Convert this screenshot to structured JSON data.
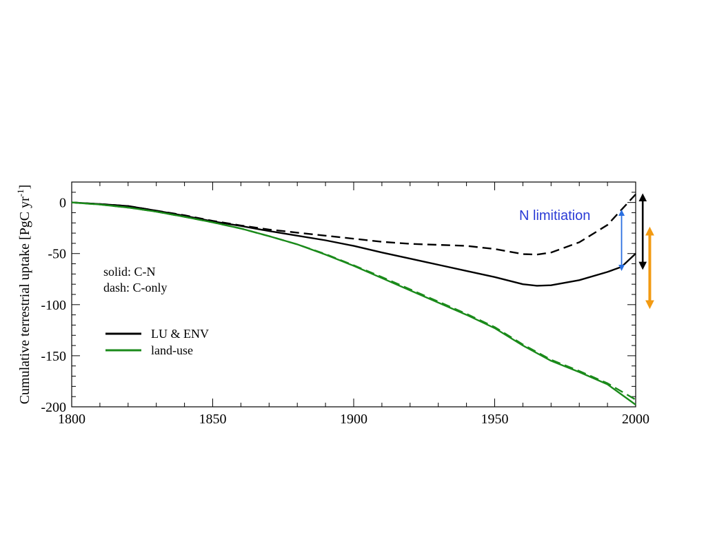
{
  "chart_data": {
    "type": "line",
    "title": "",
    "xlabel": "",
    "ylabel": "Cumulative terrestrial uptake [PgC yr",
    "ylabel_sup": "-1",
    "ylabel_close": "]",
    "xlim": [
      1800,
      2000
    ],
    "ylim": [
      -200,
      20
    ],
    "xticks": [
      1800,
      1850,
      1900,
      1950,
      2000
    ],
    "yticks": [
      0,
      -50,
      -100,
      -150,
      -200
    ],
    "xminor_step": 10,
    "yminor_step": 10,
    "grid": false,
    "legend_position": "left",
    "notes": [
      "solid: C-N",
      "dash: C-only"
    ],
    "legend": [
      {
        "label": "LU & ENV",
        "color": "#000000"
      },
      {
        "label": "land-use",
        "color": "#1a8a1a"
      }
    ],
    "annotation": {
      "text": "N limitiation",
      "color": "#2a3bd6"
    },
    "series": [
      {
        "name": "LU & ENV",
        "model": "C-N",
        "style": "solid",
        "color": "#000000",
        "x": [
          1800,
          1810,
          1820,
          1830,
          1840,
          1850,
          1860,
          1870,
          1880,
          1890,
          1900,
          1910,
          1920,
          1930,
          1940,
          1950,
          1960,
          1965,
          1970,
          1980,
          1990,
          1995,
          2000
        ],
        "y": [
          0,
          -1.5,
          -3.5,
          -8,
          -13,
          -18.5,
          -23,
          -28,
          -32.5,
          -37,
          -42.5,
          -49,
          -55,
          -61,
          -67,
          -73,
          -80,
          -81.5,
          -81,
          -76,
          -68,
          -63,
          -50
        ]
      },
      {
        "name": "LU & ENV",
        "model": "C-only",
        "style": "dashed",
        "color": "#000000",
        "x": [
          1800,
          1810,
          1820,
          1830,
          1840,
          1850,
          1860,
          1870,
          1880,
          1890,
          1900,
          1910,
          1920,
          1930,
          1940,
          1950,
          1960,
          1965,
          1970,
          1980,
          1990,
          2000
        ],
        "y": [
          0,
          -1.5,
          -3.5,
          -8,
          -12.5,
          -18,
          -22.5,
          -26.5,
          -29.5,
          -32.5,
          -35.5,
          -38.5,
          -40.5,
          -41.5,
          -42.5,
          -45.5,
          -50.5,
          -51,
          -49,
          -39,
          -22,
          8
        ]
      },
      {
        "name": "land-use",
        "model": "C-N",
        "style": "solid",
        "color": "#1a8a1a",
        "x": [
          1800,
          1810,
          1820,
          1830,
          1840,
          1850,
          1860,
          1870,
          1880,
          1890,
          1900,
          1910,
          1920,
          1930,
          1940,
          1950,
          1960,
          1970,
          1980,
          1990,
          2000
        ],
        "y": [
          0,
          -2,
          -5,
          -9,
          -14,
          -19.5,
          -25.5,
          -33,
          -41,
          -51,
          -62,
          -74,
          -86,
          -98,
          -110,
          -123,
          -140,
          -155,
          -166,
          -178,
          -198
        ]
      },
      {
        "name": "land-use",
        "model": "C-only",
        "style": "dashed",
        "color": "#1a8a1a",
        "x": [
          1800,
          1810,
          1820,
          1830,
          1840,
          1850,
          1860,
          1870,
          1880,
          1890,
          1900,
          1910,
          1920,
          1930,
          1940,
          1950,
          1960,
          1970,
          1980,
          1990,
          2000
        ],
        "y": [
          0,
          -2,
          -5,
          -9,
          -14,
          -19.5,
          -25.5,
          -33,
          -41,
          -50.5,
          -61.5,
          -73,
          -85,
          -97,
          -109,
          -122,
          -139,
          -154,
          -165,
          -177,
          -193
        ]
      }
    ],
    "arrows": [
      {
        "name": "n-limitation",
        "color": "#2a6fe0",
        "x": 1995,
        "y1": -10,
        "y2": -64
      },
      {
        "name": "black-range",
        "color": "#000000",
        "x": 2002.5,
        "y1": 5,
        "y2": -62
      },
      {
        "name": "orange-range",
        "color": "#f29a12",
        "x": 2005,
        "y1": -28,
        "y2": -100
      }
    ]
  }
}
